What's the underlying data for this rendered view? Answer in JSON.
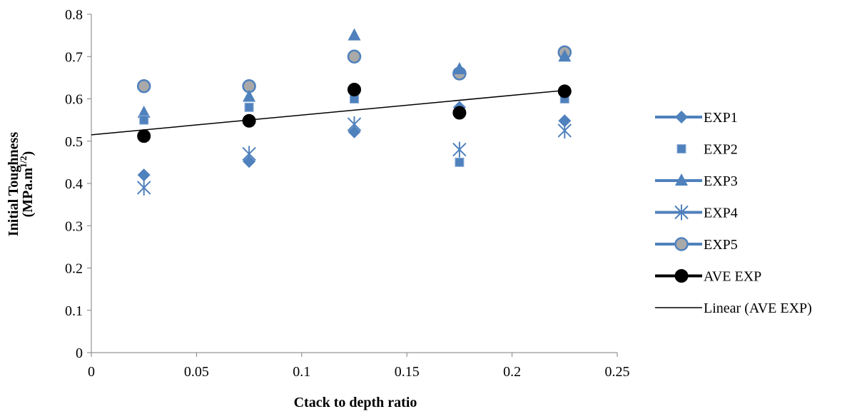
{
  "chart_data": {
    "type": "scatter",
    "xlabel": "Ctack to depth ratio",
    "ylabel": "Initial Toughness",
    "ylabel_unit_base": "(MPa.m",
    "ylabel_unit_sup": "1/2",
    "ylabel_unit_end": ")",
    "xlim": [
      0,
      0.25
    ],
    "ylim": [
      0,
      0.8
    ],
    "x_ticks": [
      "0",
      "0.05",
      "0.1",
      "0.15",
      "0.2",
      "0.25"
    ],
    "y_ticks": [
      "0",
      "0.1",
      "0.2",
      "0.3",
      "0.4",
      "0.5",
      "0.6",
      "0.7",
      "0.8"
    ],
    "legend_position": "right",
    "x": [
      0.025,
      0.075,
      0.125,
      0.175,
      0.225
    ],
    "series": [
      {
        "name": "EXP1",
        "marker": "diamond",
        "color": "#4F81BD",
        "values": [
          0.42,
          0.452,
          0.522,
          0.58,
          0.548
        ]
      },
      {
        "name": "EXP2",
        "marker": "square",
        "color": "#4F81BD",
        "values": [
          0.55,
          0.58,
          0.6,
          0.45,
          0.6
        ]
      },
      {
        "name": "EXP3",
        "marker": "triangle",
        "color": "#4F81BD",
        "values": [
          0.567,
          0.605,
          0.75,
          0.67,
          0.7
        ]
      },
      {
        "name": "EXP4",
        "marker": "asterisk",
        "color": "#4F81BD",
        "values": [
          0.39,
          0.47,
          0.54,
          0.48,
          0.525
        ]
      },
      {
        "name": "EXP5",
        "marker": "circle",
        "color": "#4F81BD",
        "values": [
          0.63,
          0.63,
          0.7,
          0.66,
          0.71
        ]
      },
      {
        "name": "AVE EXP",
        "marker": "circle",
        "color": "#000000",
        "values": [
          0.512,
          0.548,
          0.622,
          0.567,
          0.618
        ]
      }
    ],
    "trendline": {
      "name": "Linear (AVE EXP)",
      "type": "linear",
      "color": "#000000",
      "x": [
        0,
        0.225
      ],
      "y": [
        0.515,
        0.62
      ]
    }
  }
}
